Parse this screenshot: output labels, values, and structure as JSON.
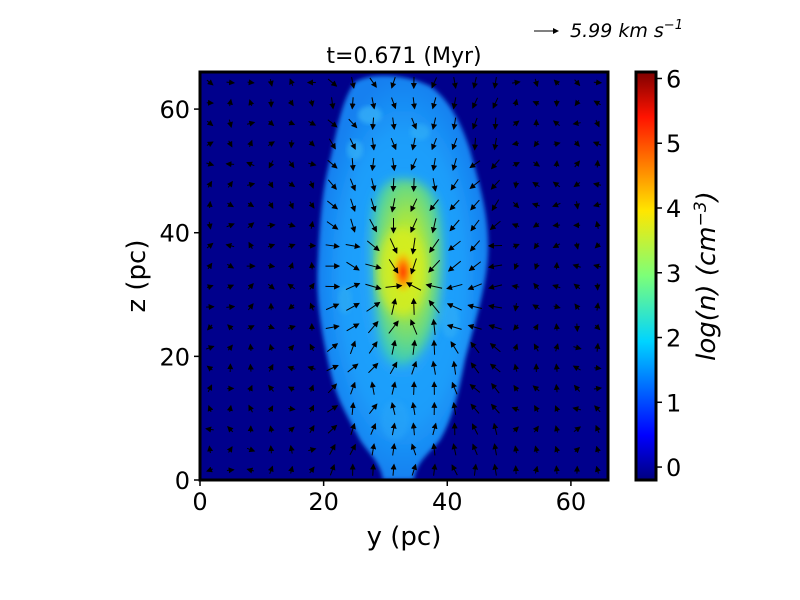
{
  "chart_data": {
    "type": "heatmap",
    "title": "t=0.671 (Myr)",
    "xlabel": "y (pc)",
    "ylabel": "z (pc)",
    "xlim": [
      0,
      66
    ],
    "ylim": [
      0,
      66
    ],
    "xticks": [
      0,
      20,
      40,
      60
    ],
    "yticks": [
      0,
      20,
      40,
      60
    ],
    "colormap": "jet",
    "colorbar": {
      "label": "log(n) (cm^-3)",
      "label_display": "log(n) (cm",
      "label_exponent": "−3",
      "label_close": ")",
      "range": [
        -0.2,
        6.1
      ],
      "ticks": [
        0,
        1,
        2,
        3,
        4,
        5,
        6
      ]
    },
    "quiver_key": {
      "label": "5.99 km s",
      "exponent": "−1",
      "value": 5.99
    },
    "density_field": {
      "background_log_n": 0.0,
      "outer_cloud": {
        "center": [
          34,
          33
        ],
        "half_width": 13,
        "half_height": 35,
        "log_n": 2.1
      },
      "inner_core": {
        "center": [
          33,
          35
        ],
        "half_width": 6.5,
        "half_height": 15,
        "log_n": 3.6
      },
      "peak": {
        "center": [
          33,
          33
        ],
        "log_n": 5.5
      }
    },
    "velocity_field": {
      "sink": [
        34,
        32
      ],
      "grid_spacing": 3.3
    },
    "grid": false
  }
}
